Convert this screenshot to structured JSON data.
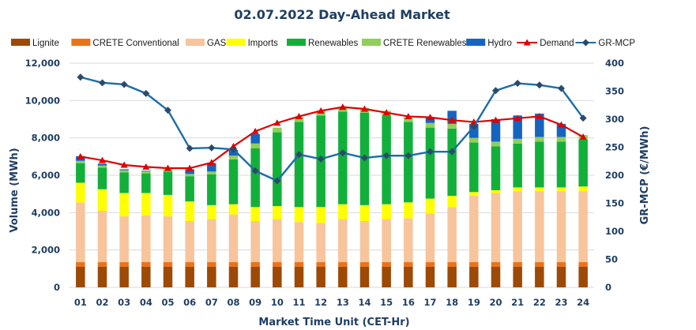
{
  "chart_data": {
    "type": "bar",
    "title": "02.07.2022  Day-Ahead Market",
    "xlabel": "Market Time Unit (CET-Hr)",
    "ylabel": "Volume (MWh)",
    "y2label": "GR-MCP (€/MWh)",
    "ylim": [
      0,
      12000
    ],
    "y2lim": [
      0,
      400
    ],
    "yticks": [
      "0",
      "2,000",
      "4,000",
      "6,000",
      "8,000",
      "10,000",
      "12,000"
    ],
    "y2ticks": [
      "0",
      "50",
      "100",
      "150",
      "200",
      "250",
      "300",
      "350",
      "400"
    ],
    "categories": [
      "01",
      "02",
      "03",
      "04",
      "05",
      "06",
      "07",
      "08",
      "09",
      "10",
      "11",
      "12",
      "13",
      "14",
      "15",
      "16",
      "17",
      "18",
      "19",
      "20",
      "21",
      "22",
      "23",
      "24"
    ],
    "series": [
      {
        "name": "Lignite",
        "color": "#9c4a06",
        "values": [
          1100,
          1100,
          1100,
          1100,
          1100,
          1100,
          1100,
          1100,
          1100,
          1100,
          1100,
          1100,
          1100,
          1100,
          1100,
          1100,
          1100,
          1100,
          1100,
          1100,
          1100,
          1100,
          1100,
          1100
        ]
      },
      {
        "name": "CRETE Conventional",
        "color": "#e8731c",
        "values": [
          250,
          250,
          250,
          250,
          250,
          250,
          250,
          250,
          250,
          250,
          250,
          250,
          250,
          250,
          250,
          250,
          250,
          250,
          250,
          250,
          250,
          250,
          250,
          250
        ]
      },
      {
        "name": "GAS",
        "color": "#f7c49c",
        "values": [
          3200,
          2750,
          2450,
          2500,
          2450,
          2200,
          2300,
          2550,
          2200,
          2300,
          2150,
          2100,
          2300,
          2200,
          2300,
          2350,
          2600,
          2950,
          3550,
          3700,
          3800,
          3800,
          3800,
          3800
        ]
      },
      {
        "name": "Imports",
        "color": "#ffff00",
        "values": [
          1050,
          1150,
          1250,
          1200,
          1150,
          1050,
          750,
          550,
          750,
          700,
          800,
          850,
          800,
          850,
          800,
          850,
          800,
          600,
          200,
          150,
          200,
          200,
          200,
          250
        ]
      },
      {
        "name": "Renewables",
        "color": "#12b03a",
        "values": [
          1050,
          1150,
          1100,
          1050,
          1250,
          1350,
          1650,
          2400,
          3150,
          3950,
          4550,
          4900,
          4950,
          4950,
          4750,
          4300,
          3800,
          3600,
          2650,
          2350,
          2350,
          2450,
          2450,
          2500
        ]
      },
      {
        "name": "CRETE Renewables",
        "color": "#8fcf5a",
        "values": [
          120,
          120,
          120,
          120,
          120,
          120,
          150,
          200,
          250,
          250,
          250,
          250,
          250,
          250,
          250,
          250,
          250,
          250,
          250,
          250,
          250,
          250,
          250,
          250
        ]
      },
      {
        "name": "Hydro",
        "color": "#1565c0",
        "values": [
          250,
          100,
          50,
          30,
          0,
          250,
          450,
          300,
          500,
          0,
          0,
          0,
          0,
          0,
          0,
          0,
          300,
          700,
          750,
          1200,
          1250,
          1250,
          700,
          0
        ]
      }
    ],
    "demand": {
      "name": "Demand",
      "color": "#e00000",
      "values": [
        7000,
        6800,
        6550,
        6450,
        6380,
        6380,
        6680,
        7550,
        8350,
        8800,
        9150,
        9450,
        9650,
        9550,
        9350,
        9150,
        9100,
        8950,
        8850,
        8950,
        9050,
        9150,
        8700,
        8050
      ]
    },
    "mcp": {
      "name": "GR-MCP",
      "color": "#1a6da8",
      "values": [
        375,
        365,
        362,
        346,
        316,
        248,
        249,
        246,
        208,
        190,
        237,
        229,
        240,
        231,
        235,
        235,
        242,
        242,
        287,
        351,
        364,
        361,
        355,
        302
      ]
    },
    "legend_position": "top"
  }
}
